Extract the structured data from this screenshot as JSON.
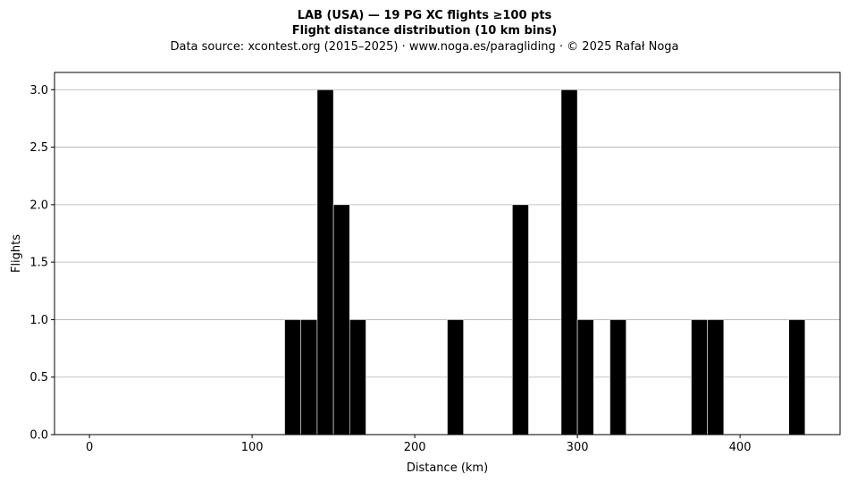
{
  "chart_data": {
    "type": "bar",
    "title_line1": "LAB (USA)  —  19 PG XC flights ≥100 pts",
    "title_line2": "Flight distance distribution (10 km bins)",
    "subtitle": "Data source: xcontest.org (2015–2025)  ·  www.noga.es/paragliding  ·  © 2025 Rafał Noga",
    "xlabel": "Distance (km)",
    "ylabel": "Flights",
    "xlim": [
      -21.5,
      461.5
    ],
    "ylim": [
      0,
      3.15
    ],
    "xticks": [
      0,
      100,
      200,
      300,
      400
    ],
    "yticks": [
      0.0,
      0.5,
      1.0,
      1.5,
      2.0,
      2.5,
      3.0
    ],
    "grid": "y",
    "bar_color": "#000000",
    "bin_width": 10,
    "bins": [
      {
        "start": 120,
        "value": 1
      },
      {
        "start": 130,
        "value": 1
      },
      {
        "start": 140,
        "value": 3
      },
      {
        "start": 150,
        "value": 2
      },
      {
        "start": 160,
        "value": 1
      },
      {
        "start": 220,
        "value": 1
      },
      {
        "start": 260,
        "value": 2
      },
      {
        "start": 290,
        "value": 3
      },
      {
        "start": 300,
        "value": 1
      },
      {
        "start": 320,
        "value": 1
      },
      {
        "start": 370,
        "value": 1
      },
      {
        "start": 380,
        "value": 1
      },
      {
        "start": 430,
        "value": 1
      }
    ]
  }
}
